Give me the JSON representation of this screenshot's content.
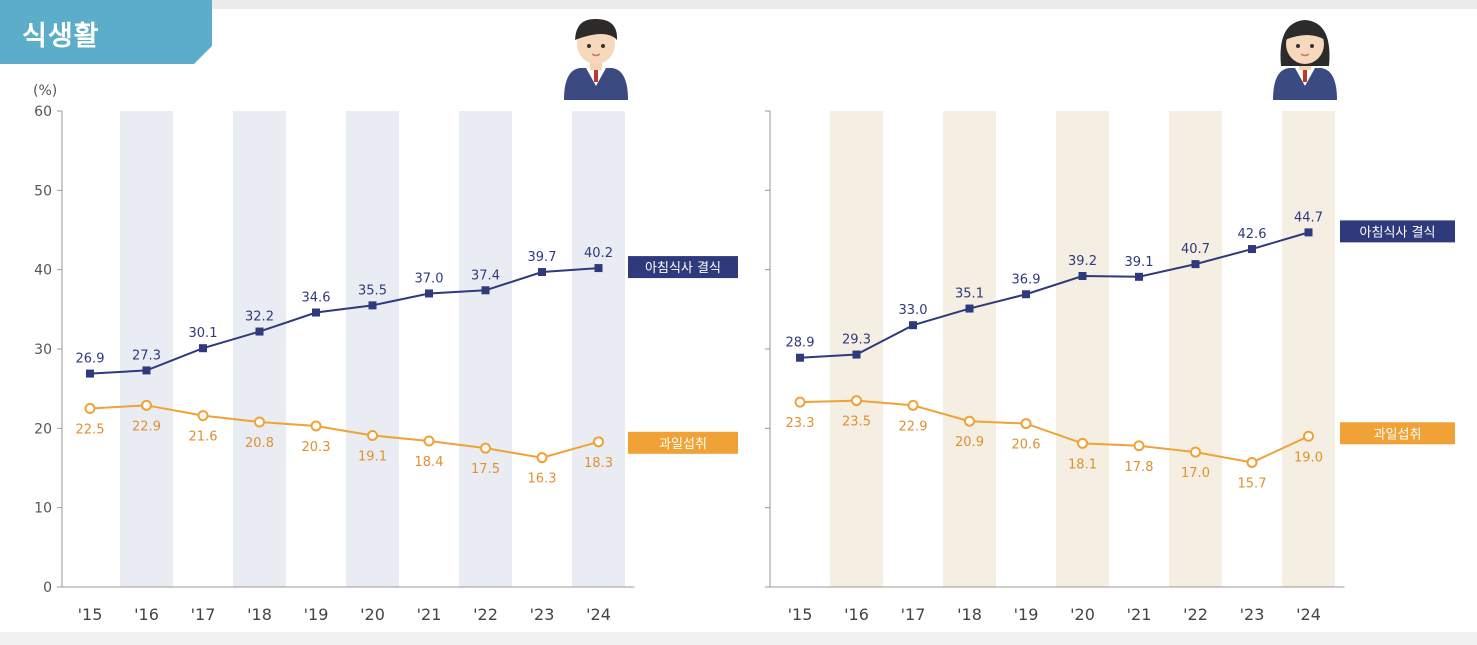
{
  "section": {
    "title": "식생활"
  },
  "colors": {
    "breakfast": "#2e3a7c",
    "fruit": "#f0a236",
    "band_boys": "#e9edf3",
    "band_girls": "#f4efe2",
    "tab": "#5badc9"
  },
  "chart_data": [
    {
      "type": "line",
      "panel": "boys",
      "icon": "boy-student-icon",
      "ylabel": "(%)",
      "ylim": [
        0,
        60
      ],
      "yticks": [
        0,
        10,
        20,
        30,
        40,
        50,
        60
      ],
      "categories": [
        "'15",
        "'16",
        "'17",
        "'18",
        "'19",
        "'20",
        "'21",
        "'22",
        "'23",
        "'24"
      ],
      "series": [
        {
          "name": "아침식사 결식",
          "values": [
            26.9,
            27.3,
            30.1,
            32.2,
            34.6,
            35.5,
            37.0,
            37.4,
            39.7,
            40.2
          ]
        },
        {
          "name": "과일섭취",
          "values": [
            22.5,
            22.9,
            21.6,
            20.8,
            20.3,
            19.1,
            18.4,
            17.5,
            16.3,
            18.3
          ]
        }
      ]
    },
    {
      "type": "line",
      "panel": "girls",
      "icon": "girl-student-icon",
      "ylim": [
        0,
        60
      ],
      "categories": [
        "'15",
        "'16",
        "'17",
        "'18",
        "'19",
        "'20",
        "'21",
        "'22",
        "'23",
        "'24"
      ],
      "series": [
        {
          "name": "아침식사 결식",
          "values": [
            28.9,
            29.3,
            33.0,
            35.1,
            36.9,
            39.2,
            39.1,
            40.7,
            42.6,
            44.7
          ]
        },
        {
          "name": "과일섭취",
          "values": [
            23.3,
            23.5,
            22.9,
            20.9,
            20.6,
            18.1,
            17.8,
            17.0,
            15.7,
            19.0
          ]
        }
      ]
    }
  ]
}
